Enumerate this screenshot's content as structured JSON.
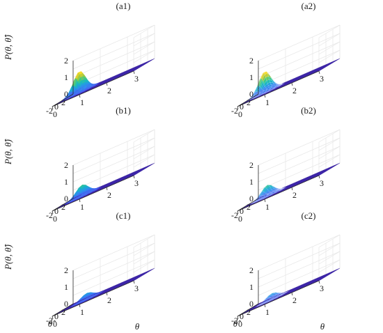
{
  "chart_data": [
    {
      "type": "surface",
      "title": "(a1)",
      "zlabel": "P(θ, θ̂)",
      "xlabel": "",
      "ylabel": "",
      "x_ticks": [
        "0",
        "1",
        "2",
        "3"
      ],
      "y_ticks": [
        "2",
        "0",
        "-2"
      ],
      "z_ticks": [
        "0",
        "1",
        "2"
      ],
      "xlim": [
        0,
        3
      ],
      "ylim": [
        -3,
        3
      ],
      "zlim": [
        0,
        2
      ],
      "peak": {
        "theta": 0.45,
        "theta_hat": 1.3,
        "height": 1.25
      },
      "mesh": false
    },
    {
      "type": "surface",
      "title": "(a2)",
      "zlabel": "",
      "xlabel": "",
      "ylabel": "",
      "x_ticks": [
        "0",
        "1",
        "2",
        "3"
      ],
      "y_ticks": [
        "2",
        "0",
        "-2"
      ],
      "z_ticks": [
        "0",
        "1",
        "2"
      ],
      "xlim": [
        0,
        3
      ],
      "ylim": [
        -3,
        3
      ],
      "zlim": [
        0,
        2
      ],
      "peak": {
        "theta": 0.45,
        "theta_hat": 1.3,
        "height": 1.25
      },
      "mesh": true
    },
    {
      "type": "surface",
      "title": "(b1)",
      "zlabel": "P(θ, θ̂)",
      "xlabel": "",
      "ylabel": "",
      "x_ticks": [
        "0",
        "1",
        "2",
        "3"
      ],
      "y_ticks": [
        "2",
        "0",
        "-2"
      ],
      "z_ticks": [
        "0",
        "1",
        "2"
      ],
      "xlim": [
        0,
        3
      ],
      "ylim": [
        -3,
        3
      ],
      "zlim": [
        0,
        2
      ],
      "peak": {
        "theta": 0.6,
        "theta_hat": 0.9,
        "height": 0.65
      },
      "mesh": false
    },
    {
      "type": "surface",
      "title": "(b2)",
      "zlabel": "",
      "xlabel": "",
      "ylabel": "",
      "x_ticks": [
        "0",
        "1",
        "2",
        "3"
      ],
      "y_ticks": [
        "2",
        "0",
        "-2"
      ],
      "z_ticks": [
        "0",
        "1",
        "2"
      ],
      "xlim": [
        0,
        3
      ],
      "ylim": [
        -3,
        3
      ],
      "zlim": [
        0,
        2
      ],
      "peak": {
        "theta": 0.6,
        "theta_hat": 0.9,
        "height": 0.65
      },
      "mesh": true
    },
    {
      "type": "surface",
      "title": "(c1)",
      "zlabel": "P(θ, θ̂)",
      "xlabel": "θ",
      "ylabel": "θ̂",
      "x_ticks": [
        "0",
        "1",
        "2",
        "3"
      ],
      "y_ticks": [
        "2",
        "0",
        "-2"
      ],
      "z_ticks": [
        "0",
        "1",
        "2"
      ],
      "xlim": [
        0,
        3
      ],
      "ylim": [
        -3,
        3
      ],
      "zlim": [
        0,
        2
      ],
      "peak": {
        "theta": 0.8,
        "theta_hat": 0.7,
        "height": 0.35
      },
      "mesh": false
    },
    {
      "type": "surface",
      "title": "(c2)",
      "zlabel": "",
      "xlabel": "θ",
      "ylabel": "θ̂",
      "x_ticks": [
        "0",
        "1",
        "2",
        "3"
      ],
      "y_ticks": [
        "2",
        "0",
        "-2"
      ],
      "z_ticks": [
        "0",
        "1",
        "2"
      ],
      "xlim": [
        0,
        3
      ],
      "ylim": [
        -3,
        3
      ],
      "zlim": [
        0,
        2
      ],
      "peak": {
        "theta": 0.8,
        "theta_hat": 0.7,
        "height": 0.35
      },
      "mesh": true
    }
  ],
  "colors": {
    "floor": "#3e26a8",
    "colormap": [
      "#3e26a8",
      "#4a56f0",
      "#2f8ef0",
      "#16b4c8",
      "#3cc98a",
      "#a7c93a",
      "#f5d52a",
      "#f9fb0e"
    ],
    "grid": "#e6e6e6",
    "axis": "#2b2b2b"
  }
}
